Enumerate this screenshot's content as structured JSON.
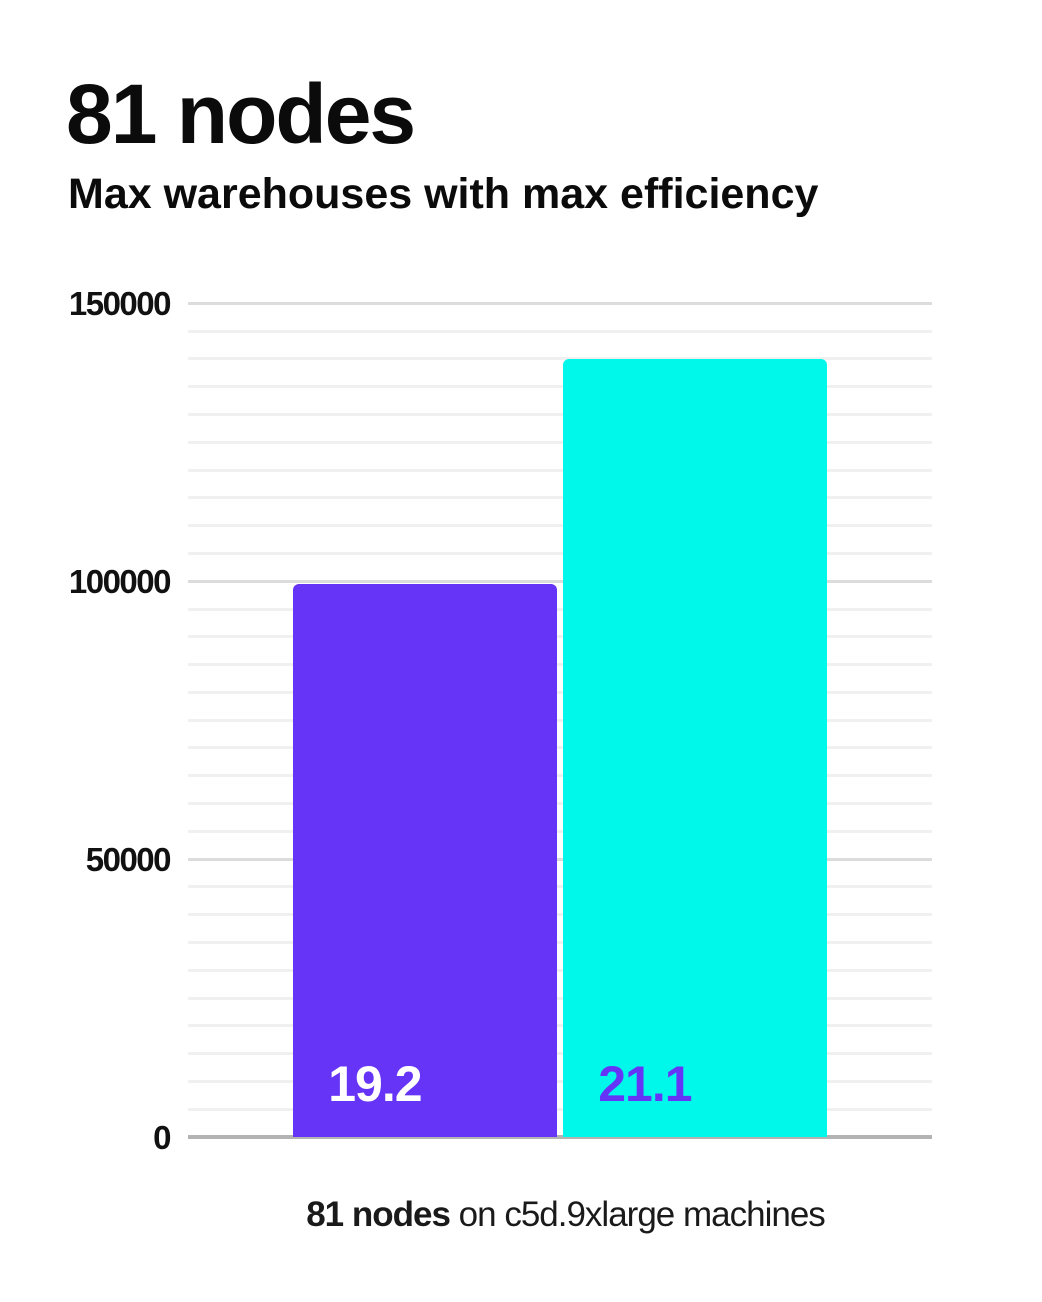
{
  "header": {
    "title": "81 nodes",
    "subtitle": "Max warehouses with max efficiency"
  },
  "chart_data": {
    "type": "bar",
    "title": "81 nodes",
    "subtitle": "Max warehouses with max efficiency",
    "bars": [
      {
        "label": "19.2",
        "value": 99500,
        "color": "#6634f6",
        "label_color": "#ffffff"
      },
      {
        "label": "21.1",
        "value": 140000,
        "color": "#00f8ea",
        "label_color": "#6634f6"
      }
    ],
    "ylabel": "",
    "xlabel": "",
    "ylim": [
      0,
      150000
    ],
    "yticks": [
      0,
      50000,
      100000,
      150000
    ],
    "minor_gridline_step": 5000,
    "grid": true,
    "legend": false
  },
  "caption": {
    "bold": "81 nodes",
    "rest": " on c5d.9xlarge machines"
  },
  "colors": {
    "purple": "#6634f6",
    "cyan": "#00f8ea",
    "gridline_minor": "#f0f0f0",
    "gridline_major": "#dcdcdc",
    "axis_line": "#b3b3b3",
    "text": "#0b0b0b"
  }
}
